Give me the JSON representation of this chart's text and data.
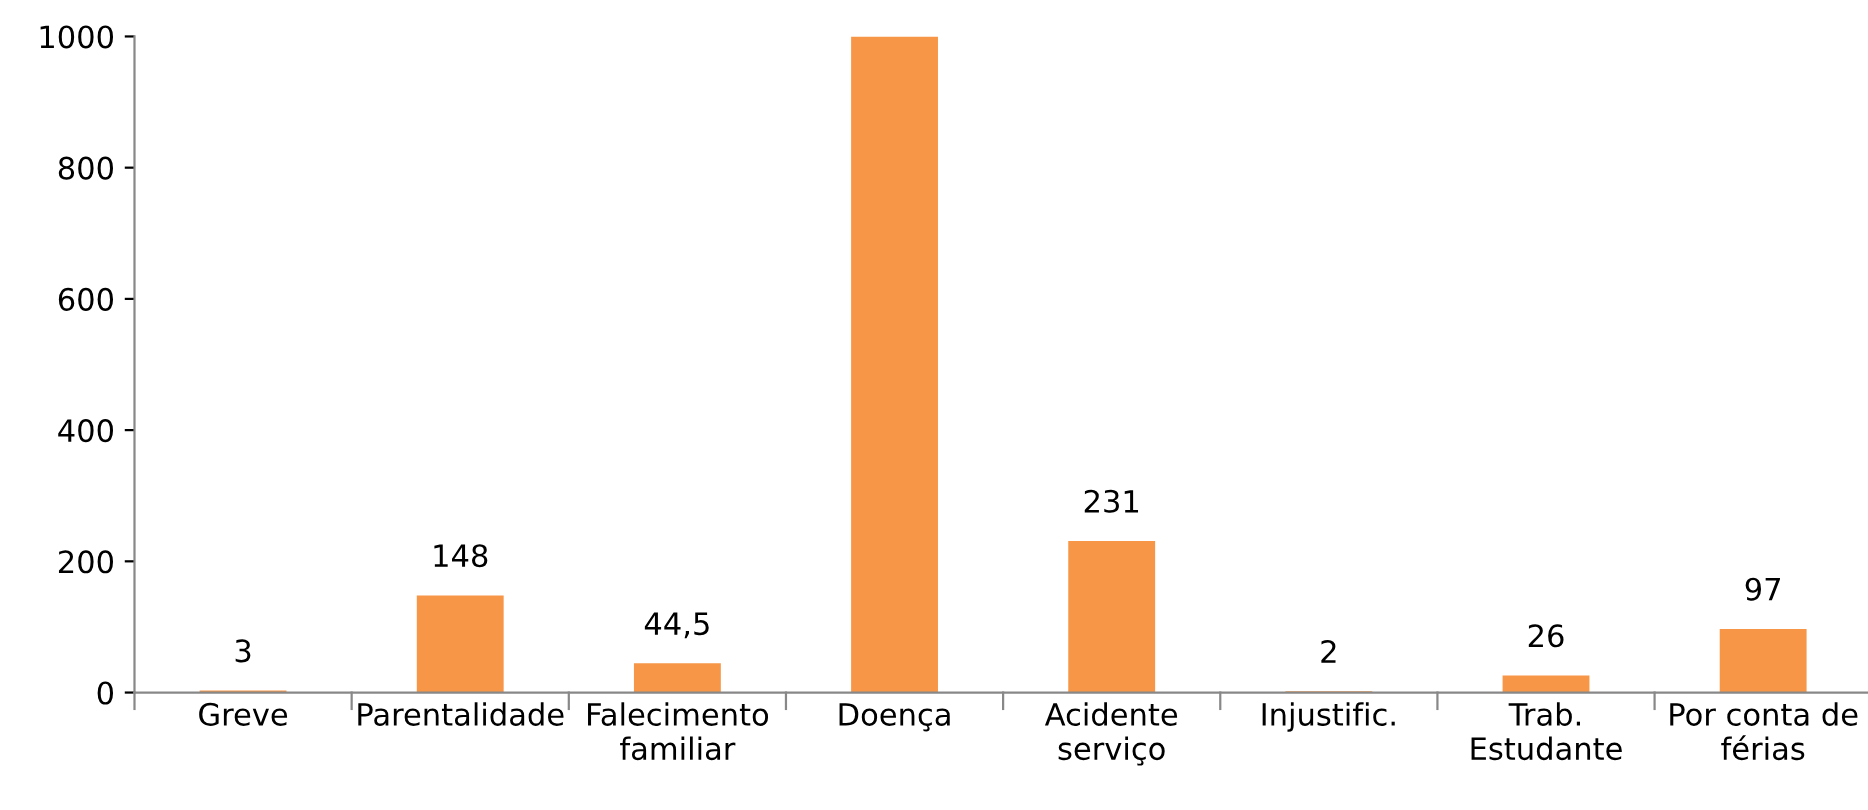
{
  "chart_data": {
    "type": "bar",
    "categories": [
      "Greve",
      "Parentalidade",
      "Falecimento\nfamiliar",
      "Doença",
      "Acidente\nserviço",
      "Injustific.",
      "Trab.\nEstudante",
      "Por conta de\nférias"
    ],
    "values": [
      3,
      148,
      44.5,
      1000,
      231,
      2,
      26,
      97
    ],
    "value_labels": [
      "3",
      "148",
      "44,5",
      null,
      "231",
      "2",
      "26",
      "97"
    ],
    "color": "#f79646",
    "ylim": [
      0,
      1000
    ],
    "yticks": [
      0,
      200,
      400,
      600,
      800,
      1000
    ],
    "grid": false,
    "legend": false
  }
}
